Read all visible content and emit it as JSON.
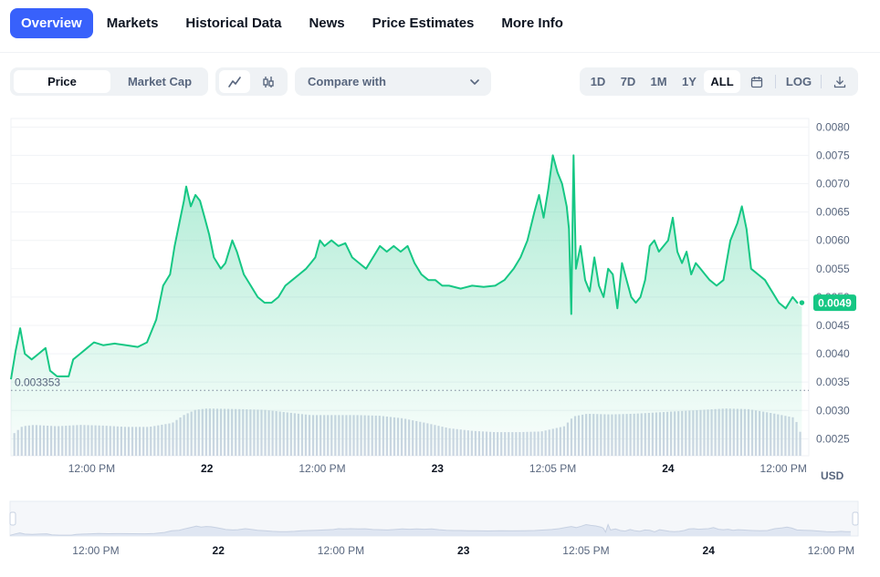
{
  "tabs": [
    {
      "label": "Overview",
      "active": true
    },
    {
      "label": "Markets"
    },
    {
      "label": "Historical Data"
    },
    {
      "label": "News"
    },
    {
      "label": "Price Estimates"
    },
    {
      "label": "More Info"
    }
  ],
  "toolbar": {
    "price_label": "Price",
    "market_cap_label": "Market Cap",
    "compare_label": "Compare with",
    "ranges": [
      "1D",
      "7D",
      "1M",
      "1Y",
      "ALL"
    ],
    "active_range": "ALL",
    "log_label": "LOG"
  },
  "colors": {
    "accent": "#3861fb",
    "line": "#16c784",
    "volume": "#cfd6e4",
    "text_muted": "#58667e"
  },
  "icons": [
    "line-chart-icon",
    "candlestick-icon",
    "chevron-down-icon",
    "calendar-icon",
    "download-icon"
  ],
  "currency_label": "USD",
  "chart_data": {
    "type": "area",
    "y_ticks": [
      "0.0080",
      "0.0075",
      "0.0070",
      "0.0065",
      "0.0060",
      "0.0055",
      "0.0050",
      "0.0045",
      "0.0040",
      "0.0035",
      "0.0030",
      "0.0025"
    ],
    "ylim": [
      0.0022,
      0.00815
    ],
    "x_ticks": [
      {
        "label": "12:00 PM",
        "t": 3.5
      },
      {
        "label": "22",
        "t": 8.5,
        "bold": true
      },
      {
        "label": "12:00 PM",
        "t": 13.5
      },
      {
        "label": "23",
        "t": 18.5,
        "bold": true
      },
      {
        "label": "12:05 PM",
        "t": 23.5
      },
      {
        "label": "24",
        "t": 28.5,
        "bold": true
      },
      {
        "label": "12:00 PM",
        "t": 33.5
      }
    ],
    "xlim": [
      0,
      34.6
    ],
    "baseline_value": 0.003353,
    "baseline_label": "0.003353",
    "current_price": 0.0049,
    "current_price_label": "0.0049",
    "price": [
      [
        0.0,
        0.00355
      ],
      [
        0.2,
        0.00405
      ],
      [
        0.4,
        0.00445
      ],
      [
        0.6,
        0.004
      ],
      [
        0.9,
        0.0039
      ],
      [
        1.2,
        0.004
      ],
      [
        1.5,
        0.0041
      ],
      [
        1.7,
        0.0037
      ],
      [
        2.0,
        0.0036
      ],
      [
        2.3,
        0.0036
      ],
      [
        2.5,
        0.0036
      ],
      [
        2.7,
        0.0039
      ],
      [
        3.0,
        0.004
      ],
      [
        3.3,
        0.0041
      ],
      [
        3.6,
        0.0042
      ],
      [
        4.0,
        0.00415
      ],
      [
        4.5,
        0.00418
      ],
      [
        5.0,
        0.00415
      ],
      [
        5.5,
        0.00412
      ],
      [
        5.9,
        0.0042
      ],
      [
        6.3,
        0.0046
      ],
      [
        6.6,
        0.0052
      ],
      [
        6.9,
        0.0054
      ],
      [
        7.1,
        0.0059
      ],
      [
        7.3,
        0.0063
      ],
      [
        7.5,
        0.0067
      ],
      [
        7.6,
        0.00695
      ],
      [
        7.8,
        0.0066
      ],
      [
        8.0,
        0.0068
      ],
      [
        8.2,
        0.0067
      ],
      [
        8.4,
        0.0064
      ],
      [
        8.6,
        0.0061
      ],
      [
        8.8,
        0.0057
      ],
      [
        9.1,
        0.0055
      ],
      [
        9.3,
        0.0056
      ],
      [
        9.6,
        0.006
      ],
      [
        9.8,
        0.0058
      ],
      [
        10.1,
        0.0054
      ],
      [
        10.4,
        0.0052
      ],
      [
        10.7,
        0.005
      ],
      [
        11.0,
        0.0049
      ],
      [
        11.3,
        0.0049
      ],
      [
        11.6,
        0.005
      ],
      [
        11.9,
        0.0052
      ],
      [
        12.2,
        0.0053
      ],
      [
        12.5,
        0.0054
      ],
      [
        12.8,
        0.0055
      ],
      [
        13.0,
        0.0056
      ],
      [
        13.2,
        0.0057
      ],
      [
        13.4,
        0.006
      ],
      [
        13.6,
        0.0059
      ],
      [
        13.9,
        0.006
      ],
      [
        14.2,
        0.0059
      ],
      [
        14.5,
        0.00595
      ],
      [
        14.8,
        0.0057
      ],
      [
        15.1,
        0.0056
      ],
      [
        15.4,
        0.0055
      ],
      [
        15.7,
        0.0057
      ],
      [
        16.0,
        0.0059
      ],
      [
        16.3,
        0.0058
      ],
      [
        16.6,
        0.0059
      ],
      [
        16.9,
        0.0058
      ],
      [
        17.2,
        0.0059
      ],
      [
        17.5,
        0.0056
      ],
      [
        17.8,
        0.0054
      ],
      [
        18.1,
        0.0053
      ],
      [
        18.4,
        0.0053
      ],
      [
        18.7,
        0.0052
      ],
      [
        19.0,
        0.0052
      ],
      [
        19.5,
        0.00515
      ],
      [
        20.0,
        0.0052
      ],
      [
        20.5,
        0.00518
      ],
      [
        21.0,
        0.0052
      ],
      [
        21.4,
        0.0053
      ],
      [
        21.8,
        0.0055
      ],
      [
        22.1,
        0.0057
      ],
      [
        22.4,
        0.006
      ],
      [
        22.7,
        0.0065
      ],
      [
        22.9,
        0.0068
      ],
      [
        23.1,
        0.0064
      ],
      [
        23.3,
        0.0069
      ],
      [
        23.5,
        0.0075
      ],
      [
        23.7,
        0.0072
      ],
      [
        23.9,
        0.007
      ],
      [
        24.1,
        0.0066
      ],
      [
        24.2,
        0.0062
      ],
      [
        24.3,
        0.0047
      ],
      [
        24.4,
        0.0075
      ],
      [
        24.5,
        0.0055
      ],
      [
        24.7,
        0.0059
      ],
      [
        24.9,
        0.0053
      ],
      [
        25.1,
        0.0051
      ],
      [
        25.3,
        0.0057
      ],
      [
        25.5,
        0.0052
      ],
      [
        25.7,
        0.005
      ],
      [
        25.9,
        0.0055
      ],
      [
        26.1,
        0.0054
      ],
      [
        26.3,
        0.0048
      ],
      [
        26.5,
        0.0056
      ],
      [
        26.7,
        0.0053
      ],
      [
        26.9,
        0.005
      ],
      [
        27.1,
        0.0049
      ],
      [
        27.3,
        0.005
      ],
      [
        27.5,
        0.0053
      ],
      [
        27.7,
        0.0059
      ],
      [
        27.9,
        0.006
      ],
      [
        28.1,
        0.0058
      ],
      [
        28.3,
        0.0059
      ],
      [
        28.5,
        0.006
      ],
      [
        28.7,
        0.0064
      ],
      [
        28.9,
        0.0058
      ],
      [
        29.1,
        0.0056
      ],
      [
        29.3,
        0.0058
      ],
      [
        29.5,
        0.0054
      ],
      [
        29.7,
        0.0056
      ],
      [
        29.9,
        0.0055
      ],
      [
        30.1,
        0.0054
      ],
      [
        30.3,
        0.0053
      ],
      [
        30.6,
        0.0052
      ],
      [
        30.9,
        0.0053
      ],
      [
        31.2,
        0.006
      ],
      [
        31.5,
        0.0063
      ],
      [
        31.7,
        0.0066
      ],
      [
        31.9,
        0.0062
      ],
      [
        32.1,
        0.0055
      ],
      [
        32.4,
        0.0054
      ],
      [
        32.7,
        0.0053
      ],
      [
        33.0,
        0.0051
      ],
      [
        33.3,
        0.0049
      ],
      [
        33.6,
        0.0048
      ],
      [
        33.9,
        0.005
      ],
      [
        34.1,
        0.0049
      ],
      [
        34.3,
        0.0049
      ]
    ],
    "volume": [
      [
        0.0,
        0.3
      ],
      [
        0.5,
        0.45
      ],
      [
        1.0,
        0.47
      ],
      [
        2.0,
        0.45
      ],
      [
        3.0,
        0.47
      ],
      [
        4.0,
        0.46
      ],
      [
        5.0,
        0.44
      ],
      [
        6.0,
        0.44
      ],
      [
        7.0,
        0.5
      ],
      [
        7.5,
        0.62
      ],
      [
        8.0,
        0.7
      ],
      [
        8.5,
        0.72
      ],
      [
        10.0,
        0.71
      ],
      [
        11.0,
        0.7
      ],
      [
        12.0,
        0.66
      ],
      [
        13.0,
        0.62
      ],
      [
        14.0,
        0.62
      ],
      [
        15.0,
        0.62
      ],
      [
        16.0,
        0.61
      ],
      [
        17.0,
        0.57
      ],
      [
        18.0,
        0.5
      ],
      [
        19.0,
        0.42
      ],
      [
        20.0,
        0.38
      ],
      [
        21.0,
        0.36
      ],
      [
        22.0,
        0.36
      ],
      [
        23.0,
        0.37
      ],
      [
        24.0,
        0.45
      ],
      [
        24.4,
        0.6
      ],
      [
        25.0,
        0.64
      ],
      [
        26.0,
        0.63
      ],
      [
        27.0,
        0.64
      ],
      [
        28.0,
        0.66
      ],
      [
        29.0,
        0.68
      ],
      [
        30.0,
        0.7
      ],
      [
        31.0,
        0.72
      ],
      [
        32.0,
        0.71
      ],
      [
        33.0,
        0.65
      ],
      [
        34.0,
        0.58
      ],
      [
        34.3,
        0.3
      ]
    ]
  }
}
